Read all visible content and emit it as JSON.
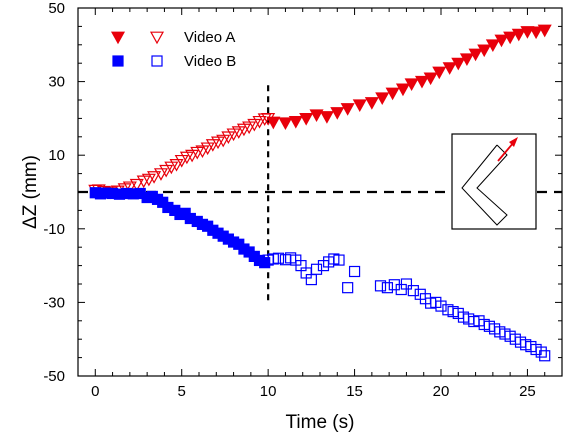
{
  "chart_data": {
    "type": "scatter",
    "xlabel": "Time (s)",
    "ylabel": "ΔZ (mm)",
    "xlim": [
      -1,
      27
    ],
    "ylim": [
      -50,
      50
    ],
    "x_ticks": [
      0,
      5,
      10,
      15,
      20,
      25
    ],
    "y_ticks": [
      -50,
      -30,
      -10,
      10,
      30,
      50
    ],
    "grid": false,
    "legend_position": "top-left",
    "reference_lines": [
      {
        "orientation": "horizontal",
        "value": 0,
        "style": "dashed"
      },
      {
        "orientation": "vertical",
        "value": 10,
        "style": "dashed",
        "range": [
          -30,
          29
        ]
      }
    ],
    "inset": {
      "icon": "chevron-path-arrow-icon",
      "arrow_color": "#e8000b"
    },
    "series": [
      {
        "name": "Video A",
        "marker": "triangle-down",
        "color": "#e8000b",
        "segments": [
          {
            "fill": "open",
            "x": [
              0.0,
              0.2,
              0.5,
              0.9,
              1.3,
              1.7,
              2.0,
              2.4,
              2.8,
              3.1,
              3.4,
              3.8,
              4.1,
              4.4,
              4.7,
              5.0,
              5.3,
              5.6,
              5.9,
              6.2,
              6.5,
              6.8,
              7.1,
              7.4,
              7.7,
              8.0,
              8.3,
              8.6,
              8.9,
              9.2,
              9.5,
              9.8,
              10.0
            ],
            "y": [
              0.5,
              0.6,
              0.2,
              0.0,
              0.3,
              0.9,
              1.4,
              2.1,
              3.0,
              3.5,
              4.2,
              5.0,
              5.9,
              6.8,
              7.5,
              8.6,
              9.5,
              10.0,
              10.8,
              11.2,
              12.0,
              12.9,
              13.6,
              14.1,
              15.0,
              15.8,
              16.4,
              17.1,
              17.7,
              18.4,
              19.2,
              19.9,
              20.0
            ]
          },
          {
            "fill": "filled",
            "x": [
              10.3,
              11.0,
              11.6,
              12.2,
              12.8,
              13.4,
              14.0,
              14.6,
              15.3,
              16.0,
              16.6,
              17.2,
              17.8,
              18.3,
              18.9,
              19.4,
              19.9,
              20.5,
              21.0,
              21.5,
              22.0,
              22.5,
              23.0,
              23.5,
              24.0,
              24.5,
              25.0,
              25.5,
              26.0
            ],
            "y": [
              19.0,
              18.8,
              19.2,
              20.0,
              21.0,
              20.5,
              21.6,
              22.7,
              23.7,
              24.3,
              25.6,
              26.9,
              28.0,
              29.4,
              30.1,
              31.0,
              32.6,
              33.8,
              35.0,
              36.2,
              37.5,
              38.6,
              40.0,
              41.3,
              42.1,
              42.9,
              43.6,
              43.5,
              44.0
            ]
          }
        ]
      },
      {
        "name": "Video B",
        "marker": "square",
        "color": "#0000ff",
        "segments": [
          {
            "fill": "filled",
            "x": [
              0.0,
              0.3,
              0.6,
              1.0,
              1.4,
              1.8,
              2.2,
              2.6,
              3.0,
              3.3,
              3.6,
              3.9,
              4.2,
              4.6,
              4.9,
              5.2,
              5.5,
              5.9,
              6.2,
              6.5,
              6.8,
              7.1,
              7.4,
              7.7,
              8.0,
              8.3,
              8.6,
              8.9,
              9.2,
              9.5,
              9.8
            ],
            "y": [
              -0.2,
              -0.5,
              -0.3,
              -0.4,
              -0.6,
              -0.4,
              -0.5,
              -0.4,
              -1.5,
              -1.2,
              -2.0,
              -2.8,
              -4.2,
              -5.0,
              -6.1,
              -5.8,
              -7.2,
              -8.0,
              -8.8,
              -9.3,
              -10.4,
              -11.2,
              -12.0,
              -12.8,
              -13.6,
              -14.2,
              -15.5,
              -16.3,
              -17.5,
              -18.6,
              -19.2
            ]
          },
          {
            "fill": "open",
            "x": [
              10.0,
              10.3,
              10.6,
              11.0,
              11.3,
              11.6,
              11.9,
              12.2,
              12.5,
              12.8,
              13.2,
              13.5,
              13.8,
              14.1,
              14.6,
              15.0,
              16.5,
              16.9,
              17.3,
              17.7,
              18.0,
              18.4,
              18.8,
              19.1,
              19.4,
              19.7,
              20.0,
              20.4,
              20.7,
              21.0,
              21.3,
              21.6,
              21.9,
              22.2,
              22.5,
              22.8,
              23.1,
              23.4,
              23.7,
              24.0,
              24.3,
              24.6,
              24.9,
              25.2,
              25.5,
              25.8,
              26.0
            ],
            "y": [
              -18.5,
              -18.2,
              -18.0,
              -18.4,
              -17.9,
              -18.5,
              -20.0,
              -22.0,
              -23.8,
              -21.0,
              -20.0,
              -19.0,
              -18.2,
              -18.5,
              -26.0,
              -21.6,
              -25.5,
              -26.0,
              -25.2,
              -26.5,
              -25.0,
              -26.8,
              -27.8,
              -29.0,
              -30.2,
              -30.0,
              -31.0,
              -32.0,
              -32.5,
              -33.0,
              -34.0,
              -34.5,
              -35.2,
              -35.0,
              -36.0,
              -36.5,
              -37.2,
              -38.0,
              -38.6,
              -39.2,
              -40.0,
              -40.8,
              -41.5,
              -42.0,
              -42.8,
              -43.5,
              -44.5
            ]
          }
        ]
      }
    ]
  }
}
